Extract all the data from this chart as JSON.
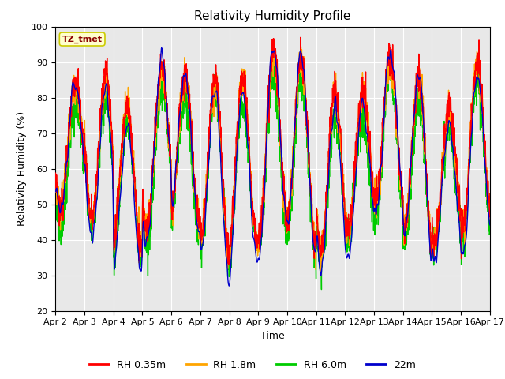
{
  "title": "Relativity Humidity Profile",
  "xlabel": "Time",
  "ylabel": "Relativity Humidity (%)",
  "ylim": [
    20,
    100
  ],
  "figure_bg": "#ffffff",
  "plot_bg_color": "#e8e8e8",
  "colors": {
    "RH 0.35m": "#ff0000",
    "RH 1.8m": "#ffa500",
    "RH 6.0m": "#00cc00",
    "22m": "#0000cc"
  },
  "legend_labels": [
    "RH 0.35m",
    "RH 1.8m",
    "RH 6.0m",
    "22m"
  ],
  "annotation_text": "TZ_tmet",
  "annotation_color": "#8b0000",
  "annotation_bg": "#ffffcc",
  "annotation_edge": "#cccc00",
  "yticks": [
    20,
    30,
    40,
    50,
    60,
    70,
    80,
    90,
    100
  ],
  "xtick_labels": [
    "Apr 2",
    "Apr 3",
    "Apr 4",
    "Apr 5",
    "Apr 6",
    "Apr 7",
    "Apr 8",
    "Apr 9",
    "Apr 10",
    "Apr 11",
    "Apr 12",
    "Apr 13",
    "Apr 14",
    "Apr 15",
    "Apr 16",
    "Apr 17"
  ],
  "grid_color": "#ffffff",
  "linewidth": 1.0,
  "tick_fontsize": 8,
  "label_fontsize": 9,
  "title_fontsize": 11
}
